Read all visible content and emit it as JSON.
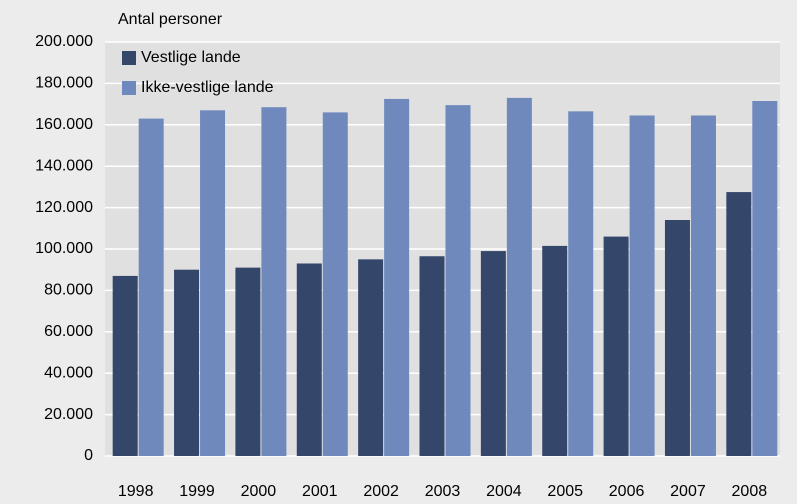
{
  "chart_data": {
    "type": "bar",
    "y_axis_label": "Antal personer",
    "categories": [
      "1998",
      "1999",
      "2000",
      "2001",
      "2002",
      "2003",
      "2004",
      "2005",
      "2006",
      "2007",
      "2008"
    ],
    "series": [
      {
        "name": "Vestlige lande",
        "color": "#35466b",
        "values": [
          87000,
          90000,
          91000,
          93000,
          95000,
          96500,
          99000,
          101500,
          106000,
          114000,
          127500
        ]
      },
      {
        "name": "Ikke-vestlige lande",
        "color": "#6f89bd",
        "values": [
          163000,
          167000,
          168500,
          166000,
          172500,
          169500,
          173000,
          166500,
          164500,
          164500,
          171500
        ]
      }
    ],
    "ylim": [
      0,
      200000
    ],
    "yticks": [
      0,
      {
        "value": 20000,
        "label": "20.000"
      },
      {
        "value": 40000,
        "label": "40.000"
      },
      {
        "value": 60000,
        "label": "60.000"
      },
      {
        "value": 80000,
        "label": "80.000"
      },
      {
        "value": 100000,
        "label": "100.000"
      },
      {
        "value": 120000,
        "label": "120.000"
      },
      {
        "value": 140000,
        "label": "140.000"
      },
      {
        "value": 160000,
        "label": "160.000"
      },
      {
        "value": 180000,
        "label": "180.000"
      },
      {
        "value": 200000,
        "label": "200.000"
      }
    ],
    "grid": true,
    "legend": "top-left"
  }
}
